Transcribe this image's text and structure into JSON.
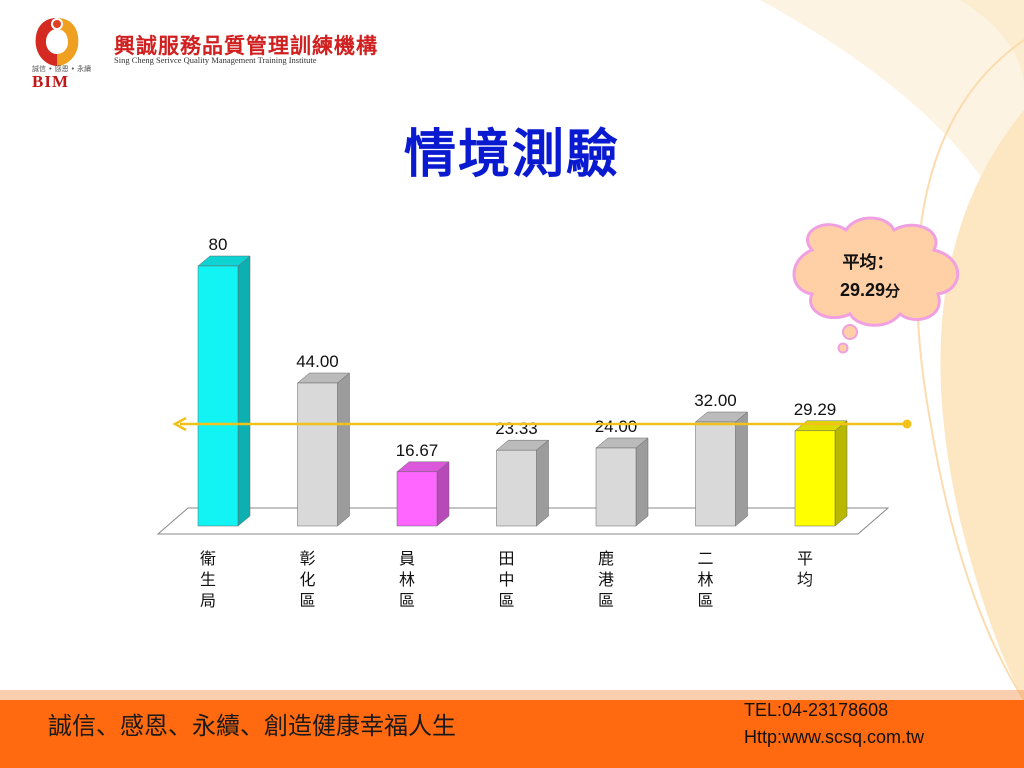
{
  "logo": {
    "name_zh": "興誠服務品質管理訓練機構",
    "name_en": "Sing Cheng Serivce Quality Management Training Institute",
    "tagline": "誠信 • 感恩 • 永續",
    "abbr": "BIM"
  },
  "title": "情境測驗",
  "callout": {
    "label": "平均：",
    "value": "29.29",
    "unit": "分"
  },
  "chart_data": {
    "type": "bar",
    "title": "",
    "xlabel": "",
    "ylabel": "",
    "categories": [
      "衛生局",
      "彰化區",
      "員林區",
      "田中區",
      "鹿港區",
      "二林區",
      "平均"
    ],
    "values": [
      80,
      44.0,
      16.67,
      23.33,
      24.0,
      32.0,
      29.29
    ],
    "data_labels": [
      "80",
      "44.00",
      "16.67",
      "23.33",
      "24.00",
      "32.00",
      "29.29"
    ],
    "bar_colors": [
      "#12f4f4",
      "#d9d9d9",
      "#ff66ff",
      "#d9d9d9",
      "#d9d9d9",
      "#d9d9d9",
      "#ffff00"
    ],
    "reference_line": {
      "value": 29.29,
      "color": "#f2c21b"
    },
    "ylim": [
      0,
      80
    ],
    "grid": false,
    "legend": "none",
    "style": "3d"
  },
  "footer": {
    "slogan": "誠信、感恩、永續、創造健康幸福人生",
    "tel": "TEL:04-23178608",
    "web": "Http:www.scsq.com.tw"
  },
  "colors": {
    "title": "#0a1ad0",
    "footer_bg": "#ff6a10",
    "callout_fill": "#ffd0a6",
    "callout_border": "#f0a0e0",
    "deco": "#fde7c2"
  }
}
